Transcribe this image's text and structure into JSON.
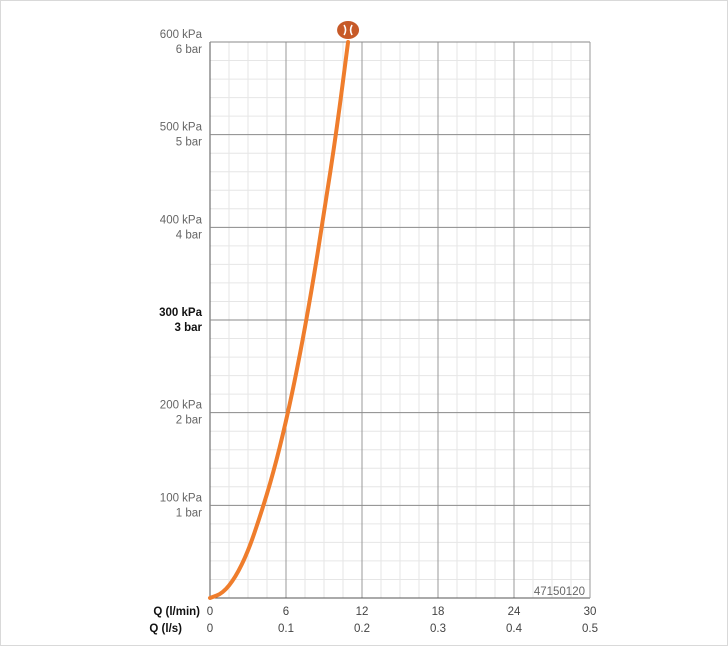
{
  "chart_data": {
    "type": "line",
    "code": "47150120",
    "x_axis_title_lmin": "Q (l/min)",
    "x_axis_title_ls": "Q (l/s)",
    "xlim": [
      0,
      30
    ],
    "ylim": [
      0,
      600
    ],
    "grid": true,
    "x_ticks_lmin": [
      "0",
      "6",
      "12",
      "18",
      "24",
      "30"
    ],
    "x_ticks_ls": [
      "0",
      "0.1",
      "0.2",
      "0.3",
      "0.4",
      "0.5"
    ],
    "y_ticks": [
      {
        "value": 100,
        "kpa": "100 kPa",
        "bar": "1 bar",
        "bold": false
      },
      {
        "value": 200,
        "kpa": "200 kPa",
        "bar": "2 bar",
        "bold": false
      },
      {
        "value": 300,
        "kpa": "300 kPa",
        "bar": "3 bar",
        "bold": true
      },
      {
        "value": 400,
        "kpa": "400 kPa",
        "bar": "4 bar",
        "bold": false
      },
      {
        "value": 500,
        "kpa": "500 kPa",
        "bar": "5 bar",
        "bold": false
      },
      {
        "value": 600,
        "kpa": "600 kPa",
        "bar": "6 bar",
        "bold": false
      }
    ],
    "series": [
      {
        "color": "#ef7d2c",
        "x": [
          0,
          1,
          2,
          3,
          4,
          5,
          6,
          7,
          8,
          9,
          10,
          10.9
        ],
        "y": [
          0,
          5,
          22,
          50,
          90,
          135,
          190,
          255,
          330,
          415,
          505,
          600
        ]
      }
    ],
    "marker": {
      "icon": "showerhead-icon",
      "color": "#c75a28",
      "x": 10.9,
      "y": 600
    }
  }
}
